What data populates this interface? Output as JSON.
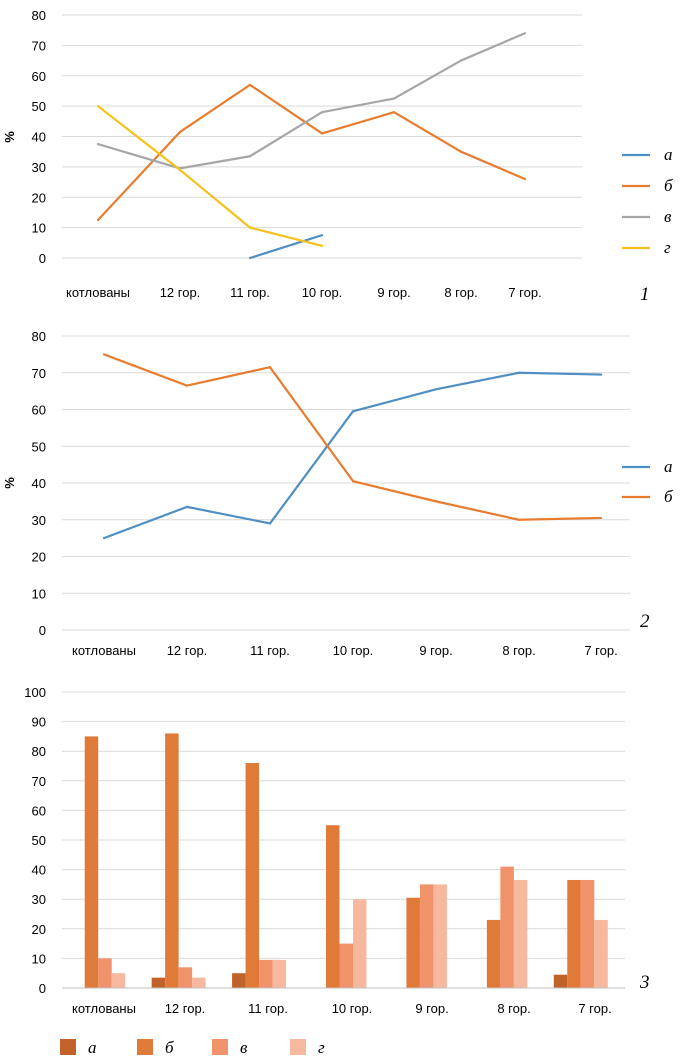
{
  "colors": {
    "a": "#4f8fc4",
    "b": "#e87b2e",
    "c": "#a6a6a6",
    "d": "#f5c11a",
    "bar_a": "#c2622b",
    "bar_b": "#e07a38",
    "bar_c": "#f0936a",
    "bar_d": "#f6b9a0",
    "grid": "#d9d9d9"
  },
  "chart_data": [
    {
      "type": "line",
      "panel_label": "1",
      "ylabel": "%",
      "ylim": [
        0,
        80
      ],
      "yticks": [
        "0",
        "10",
        "20",
        "30",
        "40",
        "50",
        "60",
        "70",
        "80"
      ],
      "categories": [
        "котлованы",
        "12 гор.",
        "11 гор.",
        "10 гор.",
        "9 гор.",
        "8 гор.",
        "7 гор."
      ],
      "series": [
        {
          "name": "а",
          "color_key": "a",
          "values": [
            null,
            null,
            0,
            7.5,
            null,
            null,
            null
          ]
        },
        {
          "name": "б",
          "color_key": "b",
          "values": [
            12.5,
            41.5,
            57,
            41,
            48,
            35,
            26
          ]
        },
        {
          "name": "в",
          "color_key": "c",
          "values": [
            37.5,
            29.5,
            33.5,
            48,
            52.5,
            65,
            74
          ]
        },
        {
          "name": "г",
          "color_key": "d",
          "values": [
            50,
            29,
            10,
            4,
            null,
            null,
            null
          ]
        }
      ]
    },
    {
      "type": "line",
      "panel_label": "2",
      "ylabel": "%",
      "ylim": [
        0,
        80
      ],
      "yticks": [
        "0",
        "10",
        "20",
        "30",
        "40",
        "50",
        "60",
        "70",
        "80"
      ],
      "categories": [
        "котлованы",
        "12 гор.",
        "11 гор.",
        "10 гор.",
        "9 гор.",
        "8 гор.",
        "7 гор."
      ],
      "series": [
        {
          "name": "а",
          "color_key": "a",
          "values": [
            25,
            33.5,
            29,
            59.5,
            65.5,
            70,
            69.5
          ]
        },
        {
          "name": "б",
          "color_key": "b",
          "values": [
            75,
            66.5,
            71.5,
            40.5,
            35,
            30,
            30.5
          ]
        }
      ]
    },
    {
      "type": "bar",
      "panel_label": "3",
      "ylim": [
        0,
        100
      ],
      "yticks": [
        "0",
        "10",
        "20",
        "30",
        "40",
        "50",
        "60",
        "70",
        "80",
        "90",
        "100"
      ],
      "categories": [
        "котлованы",
        "12 гор.",
        "11 гор.",
        "10 гор.",
        "9 гор.",
        "8 гор.",
        "7 гор."
      ],
      "series": [
        {
          "name": "а",
          "color_key": "bar_a",
          "values": [
            0,
            3.5,
            5,
            0,
            0,
            0,
            4.5
          ]
        },
        {
          "name": "б",
          "color_key": "bar_b",
          "values": [
            85,
            86,
            76,
            55,
            30.5,
            23,
            36.5
          ]
        },
        {
          "name": "в",
          "color_key": "bar_c",
          "values": [
            10,
            7,
            9.5,
            15,
            35,
            41,
            36.5
          ]
        },
        {
          "name": "г",
          "color_key": "bar_d",
          "values": [
            5,
            3.5,
            9.5,
            30,
            35,
            36.5,
            23
          ]
        }
      ]
    }
  ]
}
